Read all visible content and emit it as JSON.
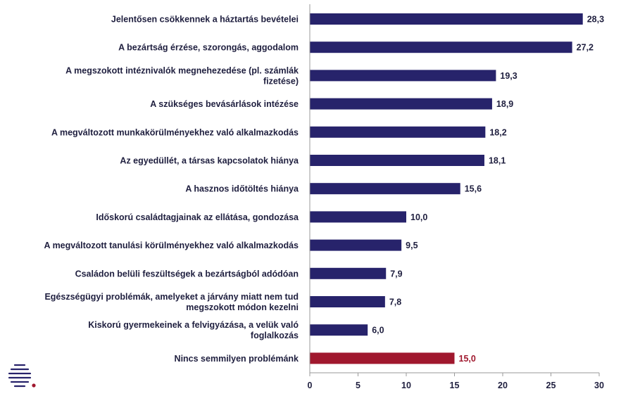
{
  "chart_data": {
    "type": "bar",
    "orientation": "horizontal",
    "categories": [
      "Jelentősen csökkennek a háztartás bevételei",
      "A bezártság érzése, szorongás, aggodalom",
      "A megszokott intéznivalók megnehezedése (pl. számlák fizetése)",
      "A szükséges bevásárlások intézése",
      "A megváltozott munkakörülményekhez való alkalmazkodás",
      "Az egyedüllét, a társas kapcsolatok hiánya",
      "A hasznos időtöltés hiánya",
      "Időskorú családtagjainak az ellátása, gondozása",
      "A megváltozott tanulási körülményekhez való alkalmazkodás",
      "Családon belüli feszültségek a bezártságból adódóan",
      "Egészségügyi problémák, amelyeket a járvány miatt nem tud megszokott módon kezelni",
      "Kiskorú gyermekeinek a felvigyázása, a velük való foglalkozás",
      "Nincs semmilyen problémánk"
    ],
    "category_lines": [
      [
        "Jelentősen csökkennek a háztartás bevételei"
      ],
      [
        "A bezártság érzése, szorongás, aggodalom"
      ],
      [
        "A megszokott intéznivalók megnehezedése (pl. számlák",
        "fizetése)"
      ],
      [
        "A szükséges bevásárlások intézése"
      ],
      [
        "A megváltozott munkakörülményekhez való alkalmazkodás"
      ],
      [
        "Az egyedüllét, a társas kapcsolatok hiánya"
      ],
      [
        "A hasznos időtöltés hiánya"
      ],
      [
        "Időskorú családtagjainak az ellátása, gondozása"
      ],
      [
        "A megváltozott tanulási körülményekhez való alkalmazkodás"
      ],
      [
        "Családon belüli feszültségek a bezártságból adódóan"
      ],
      [
        "Egészségügyi problémák, amelyeket a járvány miatt nem tud",
        "megszokott módon kezelni"
      ],
      [
        "Kiskorú gyermekeinek a felvigyázása, a velük való",
        "foglalkozás"
      ],
      [
        "Nincs semmilyen problémánk"
      ]
    ],
    "values": [
      28.3,
      27.2,
      19.3,
      18.9,
      18.2,
      18.1,
      15.6,
      10.0,
      9.5,
      7.9,
      7.8,
      6.0,
      15.0
    ],
    "value_labels": [
      "28,3",
      "27,2",
      "19,3",
      "18,9",
      "18,2",
      "18,1",
      "15,6",
      "10,0",
      "9,5",
      "7,9",
      "7,8",
      "6,0",
      "15,0"
    ],
    "xlim": [
      0,
      30
    ],
    "xticks": [
      0,
      5,
      10,
      15,
      20,
      25,
      30
    ],
    "xtick_labels": [
      "0",
      "5",
      "10",
      "15",
      "20",
      "25",
      "30"
    ],
    "grid": false,
    "legend": "none",
    "title": "",
    "xlabel": "",
    "ylabel": "",
    "colors": {
      "bar": "#27236b",
      "highlight_bar": "#a0182e",
      "axis": "#9a9a9a",
      "text": "#1f1f3f"
    },
    "highlight_index": 12
  },
  "logo": {
    "icon": "striped-globe-logo-icon",
    "stripe_color": "#27236b",
    "dot_color": "#a0182e"
  }
}
